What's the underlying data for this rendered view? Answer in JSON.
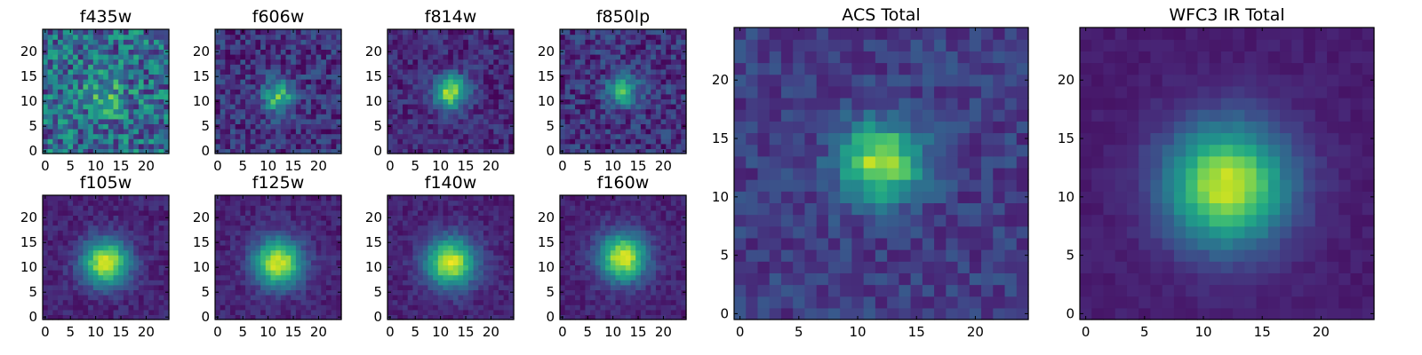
{
  "chart_data": [
    {
      "type": "heatmap",
      "title": "f435w",
      "grid_size": 25,
      "xlim": [
        0,
        24
      ],
      "ylim": [
        0,
        24
      ],
      "xticks": [
        0,
        5,
        10,
        15,
        20
      ],
      "yticks": [
        0,
        5,
        10,
        15,
        20
      ],
      "peak": [
        12,
        11
      ],
      "sigma": 3.0,
      "amplitude": 0.25,
      "noise": 0.55,
      "background": 0.35,
      "colormap": "viridis"
    },
    {
      "type": "heatmap",
      "title": "f606w",
      "grid_size": 25,
      "xlim": [
        0,
        24
      ],
      "ylim": [
        0,
        24
      ],
      "xticks": [
        0,
        5,
        10,
        15,
        20
      ],
      "yticks": [
        0,
        5,
        10,
        15,
        20
      ],
      "peak": [
        12,
        11
      ],
      "sigma": 2.2,
      "amplitude": 0.55,
      "noise": 0.3,
      "background": 0.15,
      "colormap": "viridis"
    },
    {
      "type": "heatmap",
      "title": "f814w",
      "grid_size": 25,
      "xlim": [
        0,
        24
      ],
      "ylim": [
        0,
        24
      ],
      "xticks": [
        0,
        5,
        10,
        15,
        20
      ],
      "yticks": [
        0,
        5,
        10,
        15,
        20
      ],
      "peak": [
        12,
        12
      ],
      "sigma": 2.3,
      "amplitude": 0.75,
      "noise": 0.22,
      "background": 0.12,
      "colormap": "viridis"
    },
    {
      "type": "heatmap",
      "title": "f850lp",
      "grid_size": 25,
      "xlim": [
        0,
        24
      ],
      "ylim": [
        0,
        24
      ],
      "xticks": [
        0,
        5,
        10,
        15,
        20
      ],
      "yticks": [
        0,
        5,
        10,
        15,
        20
      ],
      "peak": [
        12,
        12
      ],
      "sigma": 2.2,
      "amplitude": 0.5,
      "noise": 0.3,
      "background": 0.15,
      "colormap": "viridis"
    },
    {
      "type": "heatmap",
      "title": "f105w",
      "grid_size": 25,
      "xlim": [
        0,
        24
      ],
      "ylim": [
        0,
        24
      ],
      "xticks": [
        0,
        5,
        10,
        15,
        20
      ],
      "yticks": [
        0,
        5,
        10,
        15,
        20
      ],
      "peak": [
        12,
        11
      ],
      "sigma": 3.2,
      "amplitude": 0.85,
      "noise": 0.14,
      "background": 0.1,
      "colormap": "viridis"
    },
    {
      "type": "heatmap",
      "title": "f125w",
      "grid_size": 25,
      "xlim": [
        0,
        24
      ],
      "ylim": [
        0,
        24
      ],
      "xticks": [
        0,
        5,
        10,
        15,
        20
      ],
      "yticks": [
        0,
        5,
        10,
        15,
        20
      ],
      "peak": [
        12,
        11
      ],
      "sigma": 3.3,
      "amplitude": 0.85,
      "noise": 0.14,
      "background": 0.1,
      "colormap": "viridis"
    },
    {
      "type": "heatmap",
      "title": "f140w",
      "grid_size": 25,
      "xlim": [
        0,
        24
      ],
      "ylim": [
        0,
        24
      ],
      "xticks": [
        0,
        5,
        10,
        15,
        20
      ],
      "yticks": [
        0,
        5,
        10,
        15,
        20
      ],
      "peak": [
        12,
        11
      ],
      "sigma": 3.4,
      "amplitude": 0.85,
      "noise": 0.13,
      "background": 0.1,
      "colormap": "viridis"
    },
    {
      "type": "heatmap",
      "title": "f160w",
      "grid_size": 25,
      "xlim": [
        0,
        24
      ],
      "ylim": [
        0,
        24
      ],
      "xticks": [
        0,
        5,
        10,
        15,
        20
      ],
      "yticks": [
        0,
        5,
        10,
        15,
        20
      ],
      "peak": [
        12,
        12
      ],
      "sigma": 3.3,
      "amplitude": 0.85,
      "noise": 0.13,
      "background": 0.1,
      "colormap": "viridis"
    },
    {
      "type": "heatmap",
      "title": "ACS Total",
      "grid_size": 25,
      "xlim": [
        0,
        24
      ],
      "ylim": [
        0,
        24
      ],
      "xticks": [
        0,
        5,
        10,
        15,
        20
      ],
      "yticks": [
        0,
        5,
        10,
        15,
        20
      ],
      "peak": [
        12,
        13
      ],
      "sigma": 2.4,
      "amplitude": 0.7,
      "noise": 0.2,
      "background": 0.18,
      "colormap": "viridis"
    },
    {
      "type": "heatmap",
      "title": "WFC3 IR Total",
      "grid_size": 25,
      "xlim": [
        0,
        24
      ],
      "ylim": [
        0,
        24
      ],
      "xticks": [
        0,
        5,
        10,
        15,
        20
      ],
      "yticks": [
        0,
        5,
        10,
        15,
        20
      ],
      "peak": [
        12,
        11
      ],
      "sigma": 3.6,
      "amplitude": 0.85,
      "noise": 0.06,
      "background": 0.08,
      "colormap": "viridis"
    }
  ]
}
